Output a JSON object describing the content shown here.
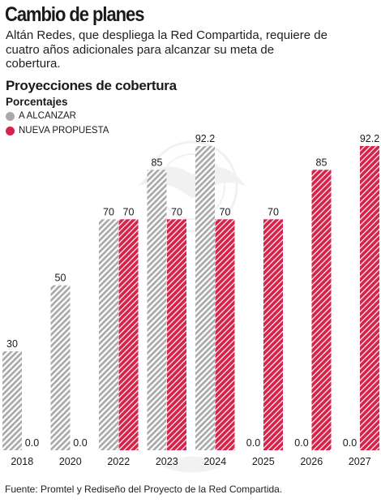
{
  "header": {
    "title": "Cambio de planes",
    "subtitle": "Altán Redes, que despliega la Red Compartida, requiere de cuatro años adicionales para alcanzar su meta de cobertura."
  },
  "chart_title": "Proyecciones de cobertura",
  "units": "Porcentajes",
  "legend": [
    {
      "label": "A ALCANZAR",
      "color": "#a9a9a9"
    },
    {
      "label": "NUEVA PROPUESTA",
      "color": "#d7224a"
    }
  ],
  "source": "Fuente: Promtel y Rediseño del Proyecto de la Red Compartida.",
  "chart_data": {
    "type": "bar",
    "categories": [
      "2018",
      "2020",
      "2022",
      "2023",
      "2024",
      "2025",
      "2026",
      "2027"
    ],
    "series": [
      {
        "name": "A ALCANZAR",
        "color": "#a9a9a9",
        "values": [
          30,
          50,
          70,
          85,
          92.2,
          0.0,
          0.0,
          0.0
        ],
        "labels": [
          "30",
          "50",
          "70",
          "85",
          "92.2",
          "0.0",
          "0.0",
          "0.0"
        ]
      },
      {
        "name": "NUEVA PROPUESTA",
        "color": "#d7224a",
        "values": [
          0.0,
          0.0,
          70,
          70,
          70,
          70,
          85,
          92.2
        ],
        "labels": [
          "0.0",
          "0.0",
          "70",
          "70",
          "70",
          "70",
          "85",
          "92.2"
        ]
      }
    ],
    "ylim": [
      0,
      92.2
    ],
    "pattern": "diagonal-stripes",
    "grid": false
  }
}
